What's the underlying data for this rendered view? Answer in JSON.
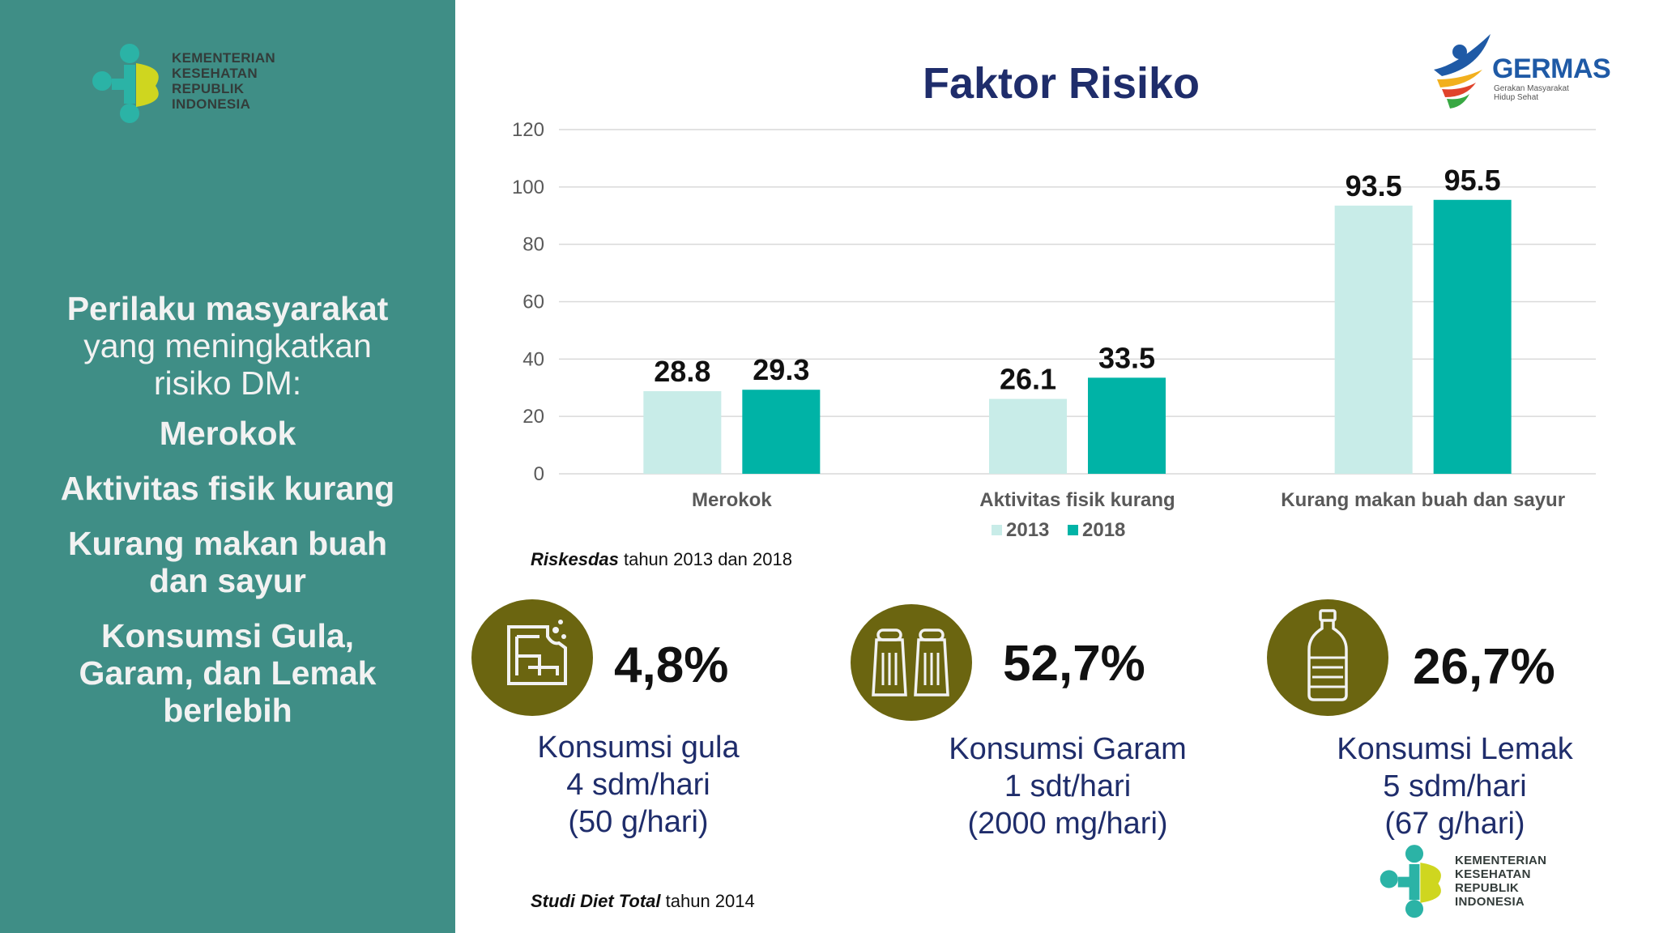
{
  "sidebar": {
    "logo_lines": [
      "KEMENTERIAN",
      "KESEHATAN",
      "REPUBLIK",
      "INDONESIA"
    ],
    "intro_bold": "Perilaku masyarakat",
    "intro_rest_1": "yang meningkatkan",
    "intro_rest_2": "risiko DM:",
    "items": [
      {
        "line1": "Merokok",
        "line2": ""
      },
      {
        "line1": "Aktivitas fisik kurang",
        "line2": ""
      },
      {
        "line1": "Kurang makan buah",
        "line2": "dan sayur"
      },
      {
        "line1": "Konsumsi Gula,",
        "line2": "Garam, dan Lemak",
        "line3": "berlebih"
      }
    ]
  },
  "title": "Faktor Risiko",
  "germas": {
    "word": "GERMAS",
    "sub_1": "Gerakan Masyarakat",
    "sub_2": "Hidup Sehat"
  },
  "chart_data": {
    "type": "bar",
    "title": "Faktor Risiko",
    "categories": [
      "Merokok",
      "Aktivitas fisik kurang",
      "Kurang makan buah dan sayur"
    ],
    "series": [
      {
        "name": "2013",
        "values": [
          28.8,
          26.1,
          93.5
        ]
      },
      {
        "name": "2018",
        "values": [
          29.3,
          33.5,
          95.5
        ]
      }
    ],
    "ylim": [
      0,
      120
    ],
    "yticks": [
      0,
      20,
      40,
      60,
      80,
      100,
      120
    ],
    "grid": true,
    "legend": "bottom",
    "colors": [
      "#c8ece8",
      "#00b3a6"
    ]
  },
  "source_1": {
    "italic": "Riskesdas",
    "rest": " tahun 2013 dan 2018"
  },
  "source_2": {
    "italic": "Studi Diet Total",
    "rest": " tahun 2014"
  },
  "stats": [
    {
      "icon": "sugar-cube-icon",
      "pct": "4,8%",
      "label_1": "Konsumsi gula",
      "label_2": "4 sdm/hari",
      "label_3": "(50 g/hari)"
    },
    {
      "icon": "salt-shaker-icon",
      "pct": "52,7%",
      "label_1": "Konsumsi Garam",
      "label_2": "1 sdt/hari",
      "label_3": "(2000 mg/hari)"
    },
    {
      "icon": "oil-bottle-icon",
      "pct": "26,7%",
      "label_1": "Konsumsi Lemak",
      "label_2": "5 sdm/hari",
      "label_3": "(67 g/hari)"
    }
  ],
  "logo_bottom_lines": [
    "KEMENTERIAN",
    "KESEHATAN",
    "REPUBLIK",
    "INDONESIA"
  ],
  "colors": {
    "sidebar": "#3f8e86",
    "title": "#1f2d6b",
    "stat_circle": "#6b6510"
  }
}
